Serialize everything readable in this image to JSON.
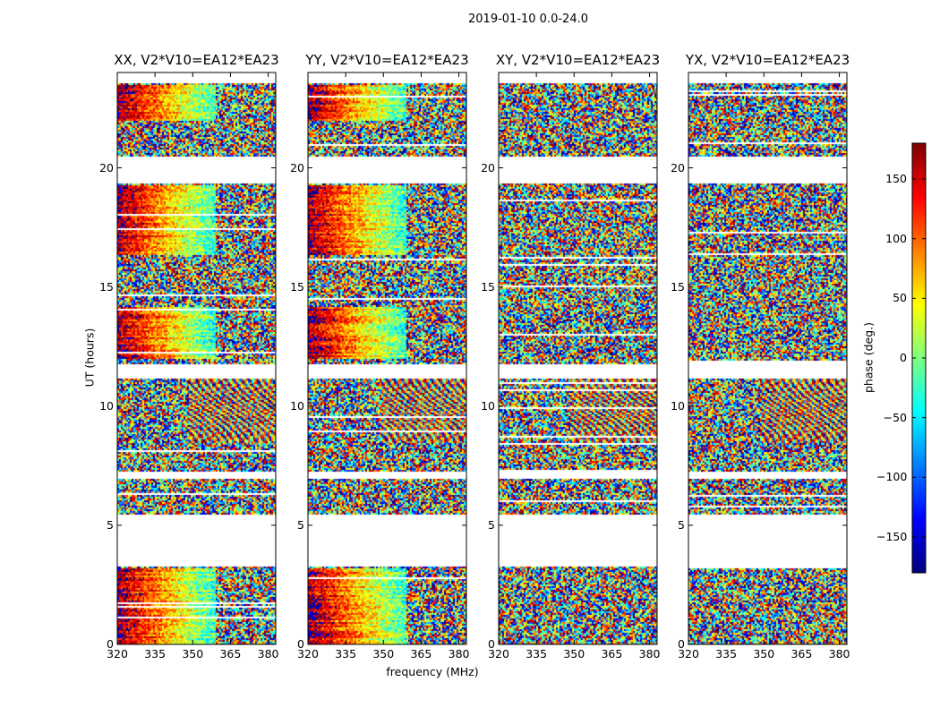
{
  "chart_data": {
    "type": "heatmap",
    "suptitle": "2019-01-10 0.0-24.0",
    "panels": [
      {
        "title": "XX, V2*V10=EA12*EA23",
        "pol": "XX"
      },
      {
        "title": "YY, V2*V10=EA12*EA23",
        "pol": "YY"
      },
      {
        "title": "XY, V2*V10=EA12*EA23",
        "pol": "XY"
      },
      {
        "title": "YX, V2*V10=EA12*EA23",
        "pol": "YX"
      }
    ],
    "xlabel": "frequency (MHz)",
    "ylabel": "UT (hours)",
    "xlim": [
      320,
      383
    ],
    "ylim": [
      0,
      24
    ],
    "xticks": [
      320,
      335,
      350,
      365,
      380
    ],
    "yticks": [
      0,
      5,
      10,
      15,
      20
    ],
    "colorbar": {
      "label": "phase (deg.)",
      "range": [
        -180,
        180
      ],
      "ticks": [
        -150,
        -100,
        -50,
        0,
        50,
        100,
        150
      ],
      "tick_labels": [
        "−150",
        "−100",
        "−50",
        "0",
        "50",
        "100",
        "150"
      ],
      "colormap": "jet"
    },
    "flagged_time_ranges_hours": [
      [
        3.3,
        5.5
      ],
      [
        7.0,
        7.3
      ],
      [
        11.2,
        11.8
      ],
      [
        19.4,
        20.5
      ],
      [
        23.6,
        24.0
      ]
    ],
    "coherent_phase_wrap_time_ranges_hours": [
      [
        0.0,
        3.2
      ],
      [
        12.0,
        14.2
      ],
      [
        16.4,
        19.3
      ],
      [
        22.0,
        23.5
      ]
    ]
  }
}
